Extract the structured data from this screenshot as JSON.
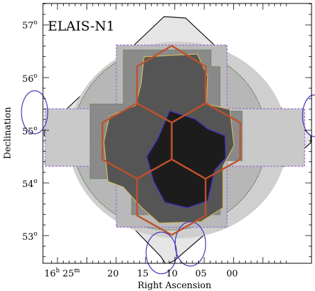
{
  "field": {
    "name": "ELAIS-N1"
  },
  "axes": {
    "x_label": "Right Ascension",
    "y_label": "Declination",
    "x_ticks": [
      {
        "value_min": 25,
        "hour_prefix": "16",
        "hour_unit": "h",
        "minute_text": "25",
        "minute_unit": "m"
      },
      {
        "value_min": 20,
        "text": "20"
      },
      {
        "value_min": 15,
        "text": "15"
      },
      {
        "value_min": 10,
        "text": "10"
      },
      {
        "value_min": 5,
        "text": "05"
      },
      {
        "value_min": 0,
        "text": "00"
      }
    ],
    "y_ticks": [
      {
        "value_deg": 57,
        "text": "57",
        "unit": "o"
      },
      {
        "value_deg": 56,
        "text": "56",
        "unit": "o"
      },
      {
        "value_deg": 55,
        "text": "55",
        "unit": "o"
      },
      {
        "value_deg": 54,
        "text": "54",
        "unit": "o"
      },
      {
        "value_deg": 53,
        "text": "53",
        "unit": "o"
      }
    ],
    "ra_range_min": [
      27,
      -5.5
    ],
    "dec_range_deg": [
      52.5,
      57.3
    ]
  },
  "colors": {
    "hexagon_outline": "#c0502a",
    "blue_contour": "#4433bb",
    "purple_contour": "#9a6fd0",
    "black_outline": "#111111",
    "green_contour": "#3c6e2a",
    "yellow_contour": "#d2b860",
    "coverage_light": "#e8e8e8",
    "coverage_mid": "#bdbdbd",
    "coverage_dark": "#7e7e7e",
    "coverage_darker": "#4a4a4a",
    "coverage_darkest": "#1c1c1c"
  }
}
